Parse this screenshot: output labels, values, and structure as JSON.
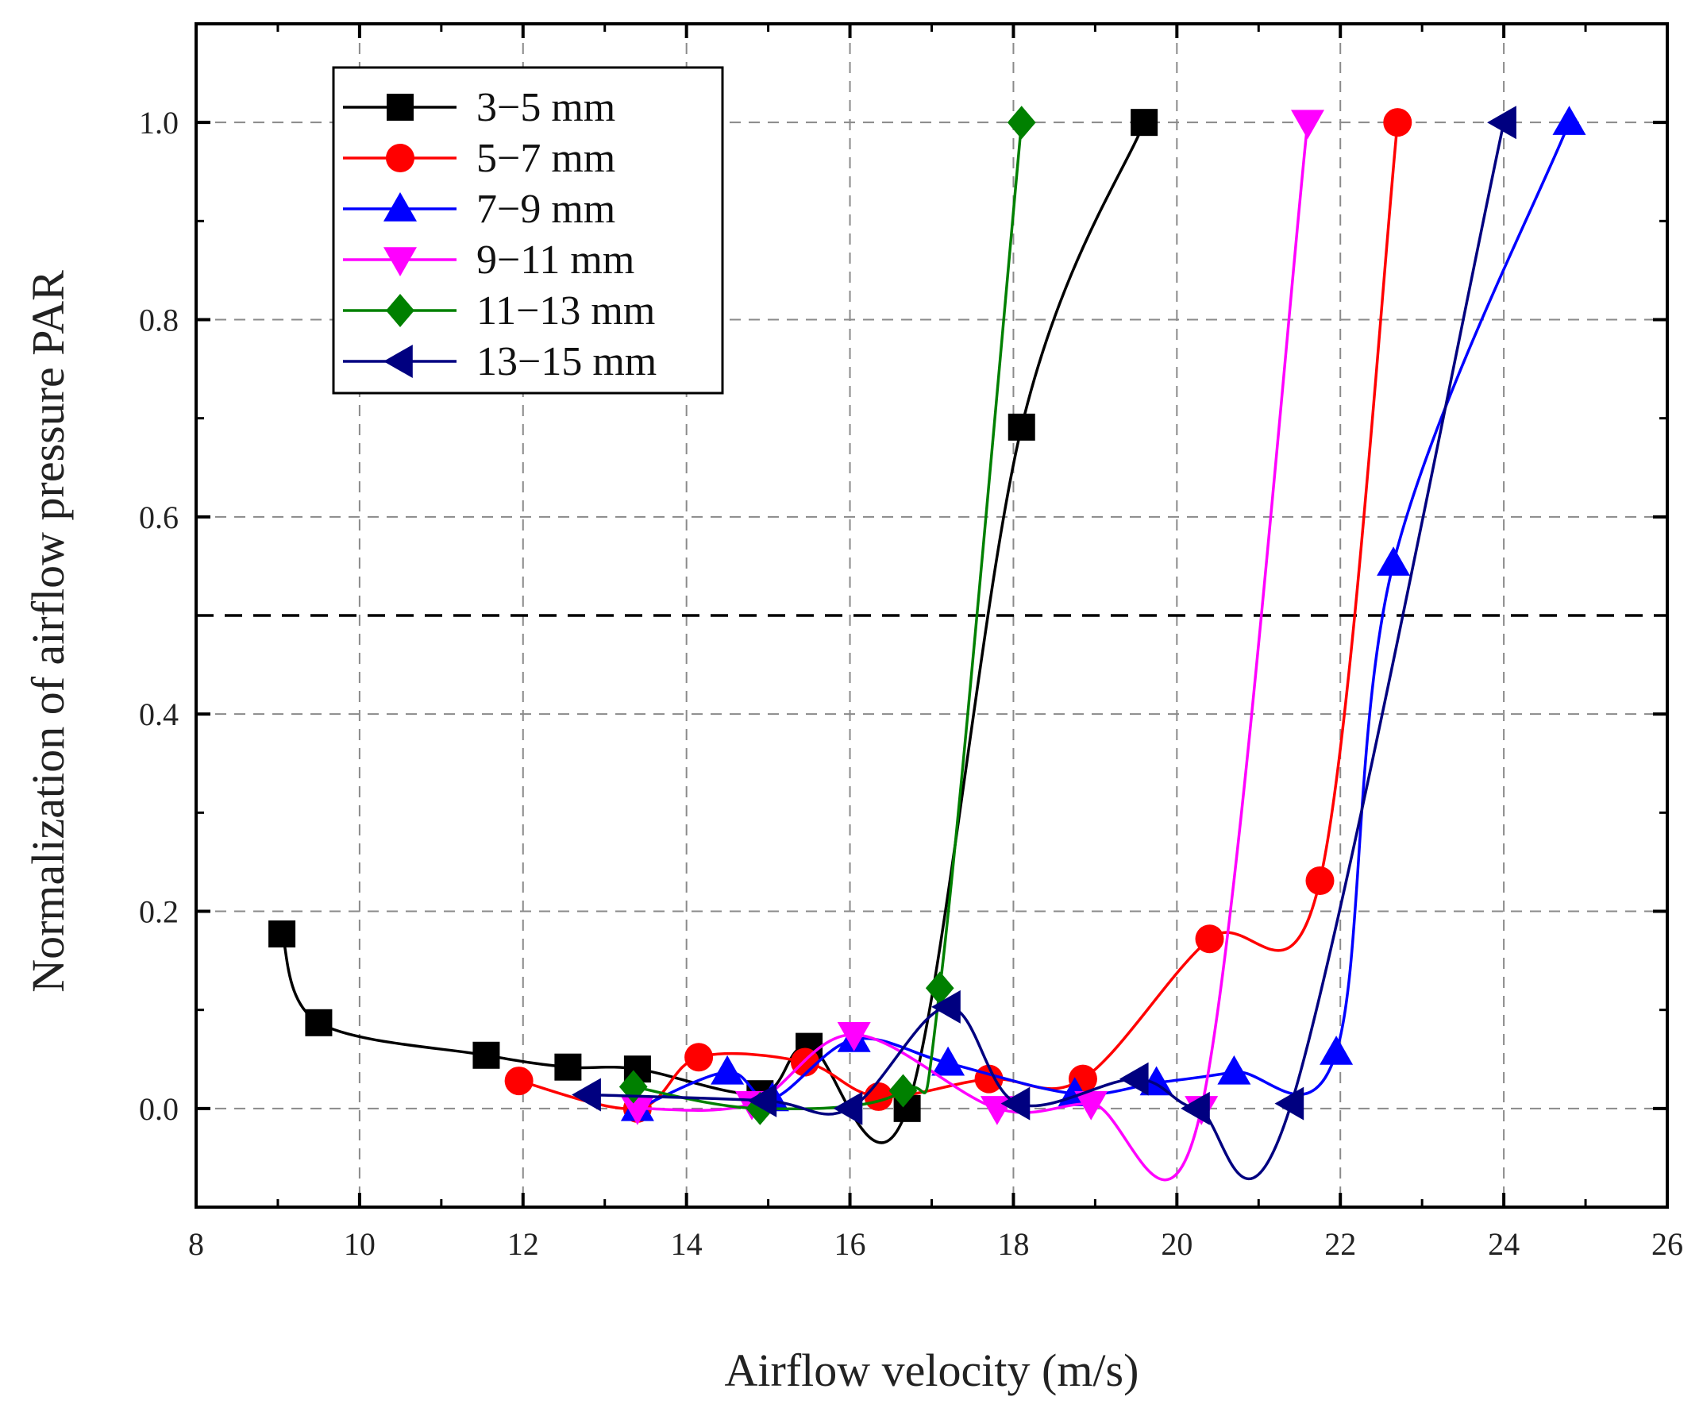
{
  "chart_data": {
    "type": "line",
    "title": "",
    "xlabel": "Airflow velocity (m/s)",
    "ylabel": "Normalization of airflow pressure PAR",
    "xlim": [
      8,
      26
    ],
    "ylim": [
      -0.1,
      1.1
    ],
    "xticks": [
      8,
      10,
      12,
      14,
      16,
      18,
      20,
      22,
      24,
      26
    ],
    "yticks": [
      0.0,
      0.2,
      0.4,
      0.6,
      0.8,
      1.0
    ],
    "grid": true,
    "legend_position": "top-left",
    "reference_line": {
      "y": 0.5,
      "style": "dashed"
    },
    "series": [
      {
        "name": "3−5 mm",
        "color": "#000000",
        "marker": "square",
        "x": [
          9.05,
          9.5,
          11.55,
          12.55,
          13.4,
          14.9,
          15.5,
          16.7,
          18.1,
          19.6
        ],
        "y": [
          0.177,
          0.087,
          0.054,
          0.042,
          0.04,
          0.015,
          0.063,
          0.0,
          0.691,
          1.0
        ]
      },
      {
        "name": "5−7 mm",
        "color": "#ff0000",
        "marker": "circle",
        "x": [
          11.95,
          13.4,
          14.15,
          15.45,
          16.35,
          17.7,
          18.85,
          20.4,
          21.75,
          22.7
        ],
        "y": [
          0.028,
          0.0,
          0.052,
          0.047,
          0.012,
          0.03,
          0.03,
          0.172,
          0.231,
          1.0
        ]
      },
      {
        "name": "7−9 mm",
        "color": "#0000ff",
        "marker": "triangle-up",
        "x": [
          13.4,
          14.5,
          15.05,
          16.05,
          17.2,
          18.75,
          19.75,
          20.7,
          21.95,
          22.65,
          24.8
        ],
        "y": [
          0.0,
          0.037,
          0.01,
          0.07,
          0.046,
          0.015,
          0.026,
          0.037,
          0.057,
          0.553,
          1.0
        ]
      },
      {
        "name": "9−11 mm",
        "color": "#ff00ff",
        "marker": "triangle-down",
        "x": [
          13.4,
          14.8,
          16.05,
          17.8,
          18.95,
          20.3,
          21.6
        ],
        "y": [
          0.0,
          0.005,
          0.075,
          0.0,
          0.005,
          0.0,
          1.0
        ]
      },
      {
        "name": "11−13 mm",
        "color": "#008000",
        "marker": "diamond",
        "x": [
          13.35,
          14.9,
          16.65,
          17.1,
          18.1
        ],
        "y": [
          0.022,
          0.0,
          0.018,
          0.122,
          1.0
        ]
      },
      {
        "name": "13−15 mm",
        "color": "#000080",
        "marker": "triangle-left",
        "x": [
          12.8,
          14.95,
          16.0,
          17.2,
          18.05,
          19.5,
          20.25,
          21.4,
          24.0
        ],
        "y": [
          0.014,
          0.008,
          0.0,
          0.103,
          0.005,
          0.03,
          0.0,
          0.005,
          1.0
        ]
      }
    ]
  }
}
